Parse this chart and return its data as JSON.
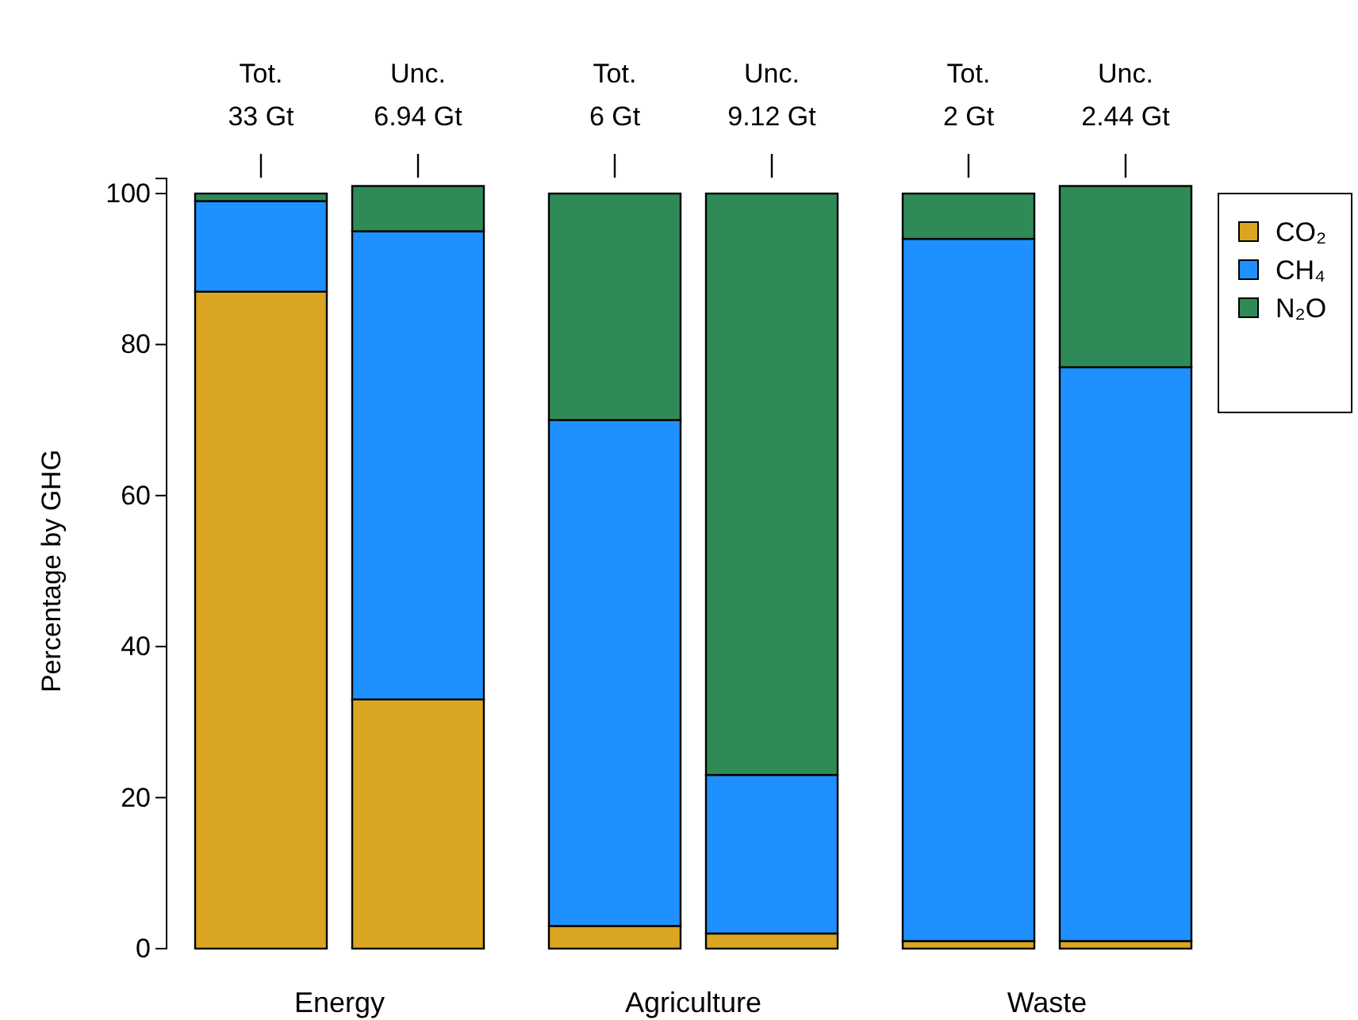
{
  "chart_data": {
    "type": "bar",
    "stacked": true,
    "ylabel": "Percentage by GHG",
    "categories": [
      null,
      null,
      null,
      null,
      null,
      null
    ],
    "series": [
      {
        "name": "CO₂",
        "color": "#daa520",
        "values": [
          87,
          33,
          3,
          2,
          1,
          1
        ]
      },
      {
        "name": "CH₄",
        "color": "#1e90ff",
        "values": [
          12,
          62,
          67,
          21,
          93,
          76
        ]
      },
      {
        "name": "N₂O",
        "color": "#2e8b57",
        "values": [
          1,
          6,
          30,
          77,
          6,
          24
        ]
      }
    ],
    "ylim": [
      0,
      102
    ],
    "yticks": [
      0,
      20,
      40,
      60,
      80,
      100
    ],
    "grid": false,
    "legend": "right",
    "annotations": [
      "Tot.\n33 Gt",
      "Unc.\n6.94 Gt",
      "Tot.\n6 Gt",
      "Unc.\n9.12 Gt",
      "Tot.\n2 Gt",
      "Unc.\n2.44 Gt",
      "Energy",
      "Agriculture",
      "Waste"
    ]
  }
}
